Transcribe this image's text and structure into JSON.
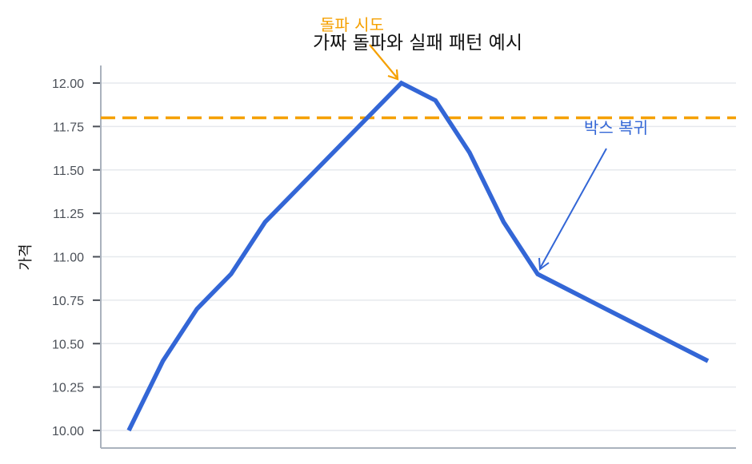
{
  "chart_data": {
    "type": "line",
    "title": "가짜 돌파와 실패 패턴 예시",
    "xlabel": "",
    "ylabel": "가격",
    "ylim": [
      9.9,
      12.1
    ],
    "yticks": [
      "10.00",
      "10.25",
      "10.50",
      "10.75",
      "11.00",
      "11.25",
      "11.50",
      "11.75",
      "12.00"
    ],
    "grid": "horizontal",
    "x": [
      0,
      1,
      2,
      3,
      4,
      5,
      6,
      7,
      8,
      9,
      10,
      11,
      12,
      13,
      14,
      15,
      16,
      17
    ],
    "series": [
      {
        "name": "가격",
        "color": "#3366d6",
        "values": [
          10.0,
          10.4,
          10.7,
          10.9,
          11.2,
          11.4,
          11.6,
          11.8,
          12.0,
          11.9,
          11.6,
          11.2,
          10.9,
          10.8,
          10.7,
          10.6,
          10.5,
          10.4
        ]
      }
    ],
    "reference_lines": [
      {
        "type": "horizontal",
        "value": 11.8,
        "style": "dashed",
        "color": "#f5a000"
      }
    ],
    "annotations": [
      {
        "text": "돌파 시도",
        "color": "#f5a000",
        "points_to_index": 8
      },
      {
        "text": "박스 복귀",
        "color": "#3366d6",
        "points_to_index": 12
      }
    ]
  },
  "colors": {
    "line": "#3366d6",
    "resistance": "#f5a000",
    "grid": "#e6e9ed",
    "axis": "#aab2bd"
  }
}
